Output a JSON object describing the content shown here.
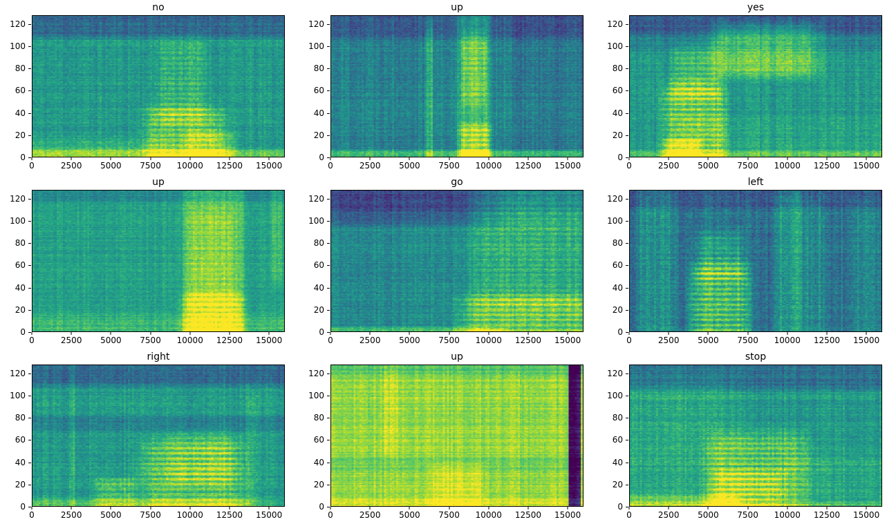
{
  "figure": {
    "background": "#ffffff",
    "colormap": "viridis",
    "description": "3x3 grid of log-mel spectrograms of spoken speech-command words",
    "grid": {
      "rows": 3,
      "cols": 3
    }
  },
  "axes": {
    "x_ticks": [
      0,
      2500,
      5000,
      7500,
      10000,
      12500,
      15000
    ],
    "x_range": [
      0,
      16000
    ],
    "y_ticks": [
      0,
      20,
      40,
      60,
      80,
      100,
      120
    ],
    "y_range": [
      0,
      128
    ],
    "grid_lines": false,
    "legend": "none"
  },
  "chart_data": [
    {
      "title": "no",
      "type": "heatmap",
      "colormap": "viridis",
      "x_range": [
        0,
        16000
      ],
      "y_range": [
        0,
        128
      ],
      "seed": 11,
      "base_level": 0.54,
      "noise": 0.07,
      "col_noise": 0.05,
      "row_noise": 0.04,
      "features": [
        {
          "x0": 0,
          "x1": 16000,
          "y0": 112,
          "y1": 128,
          "dv": -0.2,
          "my": 6
        },
        {
          "x0": 0,
          "x1": 16000,
          "y0": 0,
          "y1": 5,
          "dv": 0.22,
          "my": 3
        },
        {
          "x0": 0,
          "x1": 8000,
          "y0": 0,
          "y1": 14,
          "dv": 0.1,
          "my": 5
        },
        {
          "x0": 7800,
          "x1": 11600,
          "y0": 2,
          "y1": 40,
          "dv": 0.3,
          "stripes": true
        },
        {
          "x0": 8300,
          "x1": 10700,
          "y0": 40,
          "y1": 98,
          "dv": 0.16,
          "stripes": true
        },
        {
          "x0": 10000,
          "x1": 12500,
          "y0": 0,
          "y1": 20,
          "dv": 0.15
        }
      ]
    },
    {
      "title": "up",
      "type": "heatmap",
      "colormap": "viridis",
      "x_range": [
        0,
        16000
      ],
      "y_range": [
        0,
        128
      ],
      "seed": 22,
      "base_level": 0.46,
      "noise": 0.07,
      "col_noise": 0.06,
      "row_noise": 0.04,
      "features": [
        {
          "x0": 0,
          "x1": 16000,
          "y0": 110,
          "y1": 128,
          "dv": -0.16,
          "my": 6
        },
        {
          "x0": 0,
          "x1": 16000,
          "y0": 0,
          "y1": 4,
          "dv": 0.26,
          "my": 3
        },
        {
          "x0": 6050,
          "x1": 6400,
          "y0": 0,
          "y1": 112,
          "dv": 0.18,
          "mx": 150
        },
        {
          "x0": 8300,
          "x1": 9900,
          "y0": 0,
          "y1": 128,
          "dv": 0.22,
          "mx": 400
        },
        {
          "x0": 8400,
          "x1": 9900,
          "y0": 0,
          "y1": 26,
          "dv": 0.3,
          "stripes": true
        },
        {
          "x0": 8500,
          "x1": 9700,
          "y0": 55,
          "y1": 105,
          "dv": 0.18,
          "stripes": true
        },
        {
          "x0": 11700,
          "x1": 12500,
          "y0": 0,
          "y1": 128,
          "dv": -0.08,
          "mx": 400
        },
        {
          "x0": 13500,
          "x1": 16000,
          "y0": 0,
          "y1": 128,
          "dv": -0.05
        }
      ]
    },
    {
      "title": "yes",
      "type": "heatmap",
      "colormap": "viridis",
      "x_range": [
        0,
        16000
      ],
      "y_range": [
        0,
        128
      ],
      "seed": 33,
      "base_level": 0.54,
      "noise": 0.07,
      "col_noise": 0.05,
      "row_noise": 0.04,
      "features": [
        {
          "x0": 0,
          "x1": 16000,
          "y0": 100,
          "y1": 128,
          "dv": -0.1,
          "my": 8
        },
        {
          "x0": 0,
          "x1": 16000,
          "y0": 114,
          "y1": 128,
          "dv": -0.16,
          "my": 5
        },
        {
          "x0": 2600,
          "x1": 5600,
          "y0": 0,
          "y1": 58,
          "dv": 0.32,
          "stripes": true
        },
        {
          "x0": 3000,
          "x1": 5300,
          "y0": 58,
          "y1": 95,
          "dv": 0.18,
          "stripes": true
        },
        {
          "x0": 2400,
          "x1": 4200,
          "y0": 0,
          "y1": 14,
          "dv": 0.2
        },
        {
          "x0": 6000,
          "x1": 11200,
          "y0": 78,
          "y1": 115,
          "dv": 0.24
        },
        {
          "x0": 0,
          "x1": 16000,
          "y0": 0,
          "y1": 4,
          "dv": 0.15,
          "my": 3
        },
        {
          "x0": 5600,
          "x1": 16000,
          "y0": 0,
          "y1": 30,
          "dv": 0.05
        }
      ]
    },
    {
      "title": "up",
      "type": "heatmap",
      "colormap": "viridis",
      "x_range": [
        0,
        16000
      ],
      "y_range": [
        0,
        128
      ],
      "seed": 44,
      "base_level": 0.57,
      "noise": 0.06,
      "col_noise": 0.04,
      "row_noise": 0.04,
      "features": [
        {
          "x0": 0,
          "x1": 16000,
          "y0": 120,
          "y1": 128,
          "dv": -0.1,
          "my": 4
        },
        {
          "x0": 0,
          "x1": 16000,
          "y0": 0,
          "y1": 12,
          "dv": 0.1,
          "my": 5
        },
        {
          "x0": 9900,
          "x1": 13200,
          "y0": 0,
          "y1": 128,
          "dv": 0.18,
          "mx": 500
        },
        {
          "x0": 10000,
          "x1": 13000,
          "y0": 0,
          "y1": 30,
          "dv": 0.28,
          "stripes": true
        },
        {
          "x0": 10200,
          "x1": 12500,
          "y0": 30,
          "y1": 100,
          "dv": 0.12,
          "stripes": true
        },
        {
          "x0": 15300,
          "x1": 15750,
          "y0": 55,
          "y1": 128,
          "dv": 0.12,
          "mx": 200
        }
      ]
    },
    {
      "title": "go",
      "type": "heatmap",
      "colormap": "viridis",
      "x_range": [
        0,
        16000
      ],
      "y_range": [
        0,
        128
      ],
      "seed": 55,
      "base_level": 0.48,
      "noise": 0.07,
      "col_noise": 0.05,
      "row_noise": 0.04,
      "features": [
        {
          "x0": 0,
          "x1": 9000,
          "y0": 100,
          "y1": 128,
          "dv": -0.15,
          "my": 8
        },
        {
          "x0": 0,
          "x1": 16000,
          "y0": 112,
          "y1": 128,
          "dv": -0.12,
          "my": 6
        },
        {
          "x0": 0,
          "x1": 9200,
          "y0": 0,
          "y1": 3,
          "dv": 0.2,
          "my": 2
        },
        {
          "x0": 9300,
          "x1": 16000,
          "y0": 0,
          "y1": 28,
          "dv": 0.33,
          "stripes": true
        },
        {
          "x0": 9800,
          "x1": 15300,
          "y0": 35,
          "y1": 115,
          "dv": 0.16,
          "stripes": true,
          "phase": 1.5
        },
        {
          "x0": 9300,
          "x1": 16000,
          "y0": 0,
          "y1": 128,
          "dv": 0.05
        }
      ]
    },
    {
      "title": "left",
      "type": "heatmap",
      "colormap": "viridis",
      "x_range": [
        0,
        16000
      ],
      "y_range": [
        0,
        128
      ],
      "seed": 66,
      "base_level": 0.4,
      "noise": 0.08,
      "col_noise": 0.07,
      "row_noise": 0.04,
      "features": [
        {
          "x0": 0,
          "x1": 16000,
          "y0": 115,
          "y1": 128,
          "dv": -0.1,
          "my": 5
        },
        {
          "x0": 4300,
          "x1": 7200,
          "y0": 0,
          "y1": 52,
          "dv": 0.42,
          "stripes": true
        },
        {
          "x0": 4600,
          "x1": 6900,
          "y0": 52,
          "y1": 85,
          "dv": 0.22,
          "stripes": true
        },
        {
          "x0": 800,
          "x1": 1500,
          "y0": 0,
          "y1": 112,
          "dv": 0.14,
          "mx": 250
        },
        {
          "x0": 1900,
          "x1": 2700,
          "y0": 0,
          "y1": 112,
          "dv": 0.1,
          "mx": 300
        },
        {
          "x0": 9300,
          "x1": 10700,
          "y0": 0,
          "y1": 118,
          "dv": 0.16,
          "mx": 350
        },
        {
          "x0": 10900,
          "x1": 12300,
          "y0": 0,
          "y1": 108,
          "dv": 0.1,
          "mx": 350
        },
        {
          "x0": 14400,
          "x1": 16000,
          "y0": 0,
          "y1": 100,
          "dv": 0.08
        },
        {
          "x0": 7600,
          "x1": 9100,
          "y0": 0,
          "y1": 128,
          "dv": -0.04
        }
      ]
    },
    {
      "title": "right",
      "type": "heatmap",
      "colormap": "viridis",
      "x_range": [
        0,
        16000
      ],
      "y_range": [
        0,
        128
      ],
      "seed": 77,
      "base_level": 0.55,
      "noise": 0.07,
      "col_noise": 0.05,
      "row_noise": 0.04,
      "features": [
        {
          "x0": 0,
          "x1": 16000,
          "y0": 112,
          "y1": 128,
          "dv": -0.2,
          "my": 6
        },
        {
          "x0": 0,
          "x1": 16000,
          "y0": 70,
          "y1": 80,
          "dv": -0.1,
          "my": 4
        },
        {
          "x0": 4300,
          "x1": 6300,
          "y0": 0,
          "y1": 22,
          "dv": 0.22,
          "stripes": true
        },
        {
          "x0": 7800,
          "x1": 12700,
          "y0": 0,
          "y1": 52,
          "dv": 0.28,
          "stripes": true
        },
        {
          "x0": 9200,
          "x1": 12400,
          "y0": 25,
          "y1": 62,
          "dv": 0.12,
          "stripes": true
        },
        {
          "x0": 0,
          "x1": 13000,
          "y0": 0,
          "y1": 5,
          "dv": 0.18,
          "my": 3
        },
        {
          "x0": 13700,
          "x1": 14200,
          "y0": 0,
          "y1": 95,
          "dv": 0.1,
          "mx": 200
        },
        {
          "x0": 2350,
          "x1": 2650,
          "y0": 0,
          "y1": 128,
          "dv": 0.07,
          "mx": 150
        }
      ]
    },
    {
      "title": "up",
      "type": "heatmap",
      "colormap": "viridis",
      "x_range": [
        0,
        16000
      ],
      "y_range": [
        0,
        128
      ],
      "seed": 88,
      "base_level": 0.84,
      "noise": 0.05,
      "col_noise": 0.05,
      "row_noise": 0.05,
      "features": [
        {
          "x0": 15150,
          "x1": 15800,
          "y0": 0,
          "y1": 128,
          "dv": -0.82,
          "mx": 60,
          "my": 2
        },
        {
          "x0": 6800,
          "x1": 9300,
          "y0": 0,
          "y1": 34,
          "dv": 0.14,
          "stripes": true
        },
        {
          "x0": 0,
          "x1": 16000,
          "y0": 0,
          "y1": 6,
          "dv": 0.1,
          "my": 3
        },
        {
          "x0": 0,
          "x1": 16000,
          "y0": 120,
          "y1": 128,
          "dv": -0.1,
          "my": 4
        },
        {
          "x0": 3400,
          "x1": 4100,
          "y0": 55,
          "y1": 120,
          "dv": 0.06,
          "mx": 250
        },
        {
          "x0": 0,
          "x1": 16000,
          "y0": 34,
          "y1": 42,
          "dv": -0.05,
          "my": 4
        }
      ]
    },
    {
      "title": "stop",
      "type": "heatmap",
      "colormap": "viridis",
      "x_range": [
        0,
        16000
      ],
      "y_range": [
        0,
        128
      ],
      "seed": 99,
      "base_level": 0.54,
      "noise": 0.07,
      "col_noise": 0.05,
      "row_noise": 0.05,
      "features": [
        {
          "x0": 0,
          "x1": 16000,
          "y0": 110,
          "y1": 128,
          "dv": -0.18,
          "my": 7
        },
        {
          "x0": 0,
          "x1": 5800,
          "y0": 0,
          "y1": 105,
          "dv": 0.07
        },
        {
          "x0": 0,
          "x1": 6000,
          "y0": 0,
          "y1": 8,
          "dv": 0.18,
          "my": 4
        },
        {
          "x0": 5700,
          "x1": 10600,
          "y0": 5,
          "y1": 58,
          "dv": 0.26,
          "stripes": true
        },
        {
          "x0": 5800,
          "x1": 9200,
          "y0": 0,
          "y1": 28,
          "dv": 0.22,
          "stripes": true
        },
        {
          "x0": 10600,
          "x1": 16000,
          "y0": 0,
          "y1": 40,
          "dv": 0.06
        },
        {
          "x0": 0,
          "x1": 16000,
          "y0": 0,
          "y1": 3,
          "dv": 0.12,
          "my": 2
        }
      ]
    }
  ]
}
